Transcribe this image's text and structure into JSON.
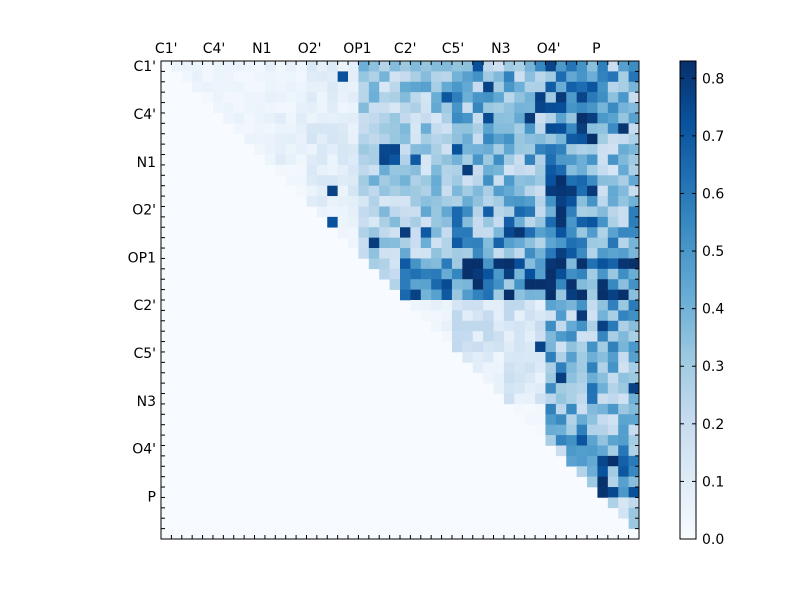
{
  "chart_data": {
    "type": "heatmap",
    "title": "",
    "xlabel": "",
    "ylabel": "",
    "x_tick_labels": [
      "C1'",
      "C4'",
      "N1",
      "O2'",
      "OP1",
      "C2'",
      "C5'",
      "N3",
      "O4'",
      "P"
    ],
    "y_tick_labels": [
      "C1'",
      "C4'",
      "N1",
      "O2'",
      "OP1",
      "C2'",
      "C5'",
      "N3",
      "O4'",
      "P"
    ],
    "grid_size": 46,
    "colormap": "Blues",
    "colorbar": {
      "vmin": 0.0,
      "vmax": 0.83,
      "ticks": [
        "0.0",
        "0.1",
        "0.2",
        "0.3",
        "0.4",
        "0.5",
        "0.6",
        "0.7",
        "0.8"
      ],
      "tick_values": [
        0.0,
        0.1,
        0.2,
        0.3,
        0.4,
        0.5,
        0.6,
        0.7,
        0.8
      ]
    },
    "structure": "upper-triangular matrix; values below the diagonal are 0",
    "block_mean_values": [
      [
        0.04,
        0.04,
        0.05,
        0.08,
        0.27,
        0.3,
        0.38,
        0.4,
        0.52,
        0.4
      ],
      [
        0.0,
        0.04,
        0.07,
        0.1,
        0.22,
        0.27,
        0.4,
        0.4,
        0.55,
        0.35
      ],
      [
        0.0,
        0.0,
        0.02,
        0.1,
        0.28,
        0.28,
        0.35,
        0.33,
        0.55,
        0.3
      ],
      [
        0.0,
        0.0,
        0.0,
        0.05,
        0.25,
        0.3,
        0.45,
        0.45,
        0.55,
        0.4
      ],
      [
        0.0,
        0.0,
        0.0,
        0.0,
        0.2,
        0.55,
        0.65,
        0.65,
        0.65,
        0.6
      ],
      [
        0.0,
        0.0,
        0.0,
        0.0,
        0.0,
        0.05,
        0.15,
        0.15,
        0.35,
        0.45
      ],
      [
        0.0,
        0.0,
        0.0,
        0.0,
        0.0,
        0.0,
        0.08,
        0.12,
        0.4,
        0.35
      ],
      [
        0.0,
        0.0,
        0.0,
        0.0,
        0.0,
        0.0,
        0.0,
        0.02,
        0.4,
        0.35
      ],
      [
        0.0,
        0.0,
        0.0,
        0.0,
        0.0,
        0.0,
        0.0,
        0.0,
        0.35,
        0.55
      ],
      [
        0.0,
        0.0,
        0.0,
        0.0,
        0.0,
        0.0,
        0.0,
        0.0,
        0.0,
        0.25
      ]
    ],
    "peak_value": 0.82,
    "grid": false,
    "legend": "colorbar right"
  }
}
